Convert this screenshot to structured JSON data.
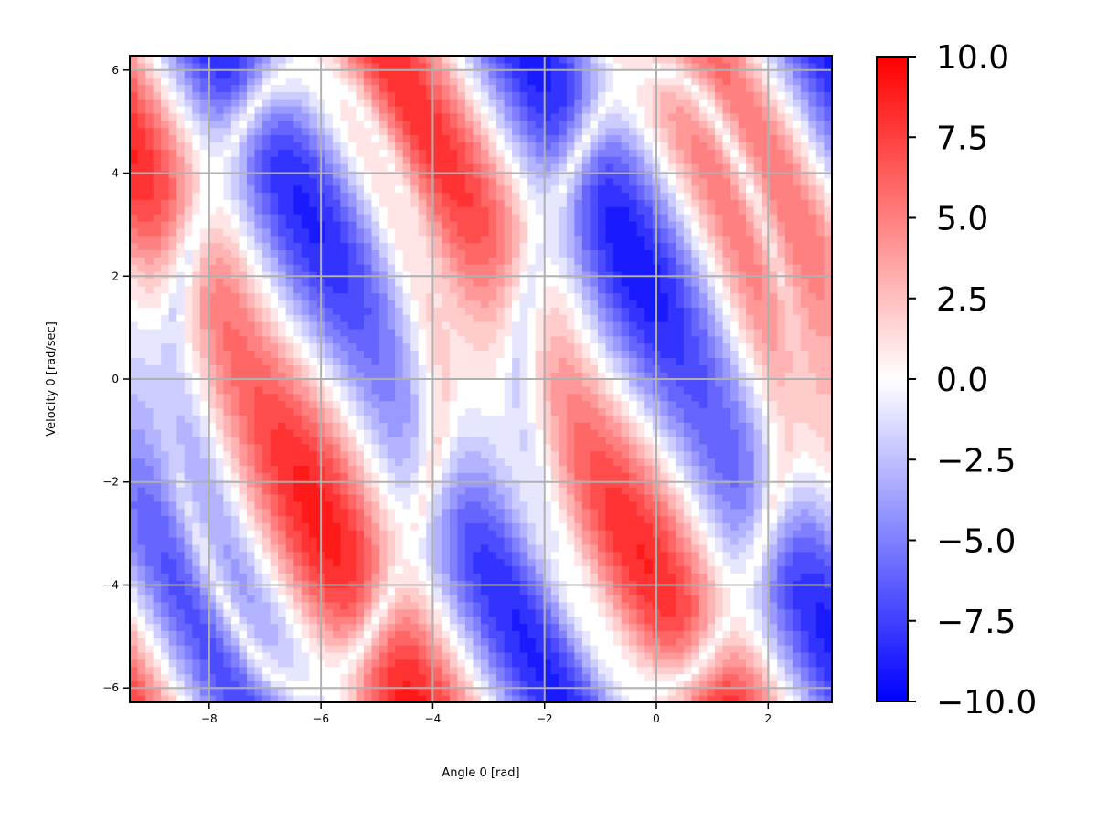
{
  "chart_data": {
    "type": "heatmap",
    "title": "",
    "xlabel": "Angle 0 [rad]",
    "ylabel": "Velocity 0 [rad/sec]",
    "xlim": [
      -9.42,
      3.14
    ],
    "ylim": [
      -6.28,
      6.28
    ],
    "x_ticks": [
      {
        "value": -8,
        "label": "−8"
      },
      {
        "value": -6,
        "label": "−6"
      },
      {
        "value": -4,
        "label": "−4"
      },
      {
        "value": -2,
        "label": "−2"
      },
      {
        "value": 0,
        "label": "0"
      },
      {
        "value": 2,
        "label": "2"
      }
    ],
    "y_ticks": [
      {
        "value": 6,
        "label": "6"
      },
      {
        "value": 4,
        "label": "4"
      },
      {
        "value": 2,
        "label": "2"
      },
      {
        "value": 0,
        "label": "0"
      },
      {
        "value": -2,
        "label": "−2"
      },
      {
        "value": -4,
        "label": "−4"
      },
      {
        "value": -6,
        "label": "−6"
      }
    ],
    "grid": true,
    "colormap": {
      "name": "bwr",
      "min": -10.0,
      "max": 10.0,
      "low_color": "#0000ff",
      "mid_color": "#ffffff",
      "high_color": "#ff0000",
      "levels": 21
    },
    "colorbar_ticks": [
      {
        "value": 10.0,
        "label": "10.0"
      },
      {
        "value": 7.5,
        "label": "7.5"
      },
      {
        "value": 5.0,
        "label": "5.0"
      },
      {
        "value": 2.5,
        "label": "2.5"
      },
      {
        "value": 0.0,
        "label": "0.0"
      },
      {
        "value": -2.5,
        "label": "−2.5"
      },
      {
        "value": -5.0,
        "label": "−5.0"
      },
      {
        "value": -7.5,
        "label": "−7.5"
      },
      {
        "value": -10.0,
        "label": "−10.0"
      }
    ],
    "colors": {
      "grid": "#b0b0b0",
      "axis": "#000000",
      "background": "#ffffff"
    }
  }
}
